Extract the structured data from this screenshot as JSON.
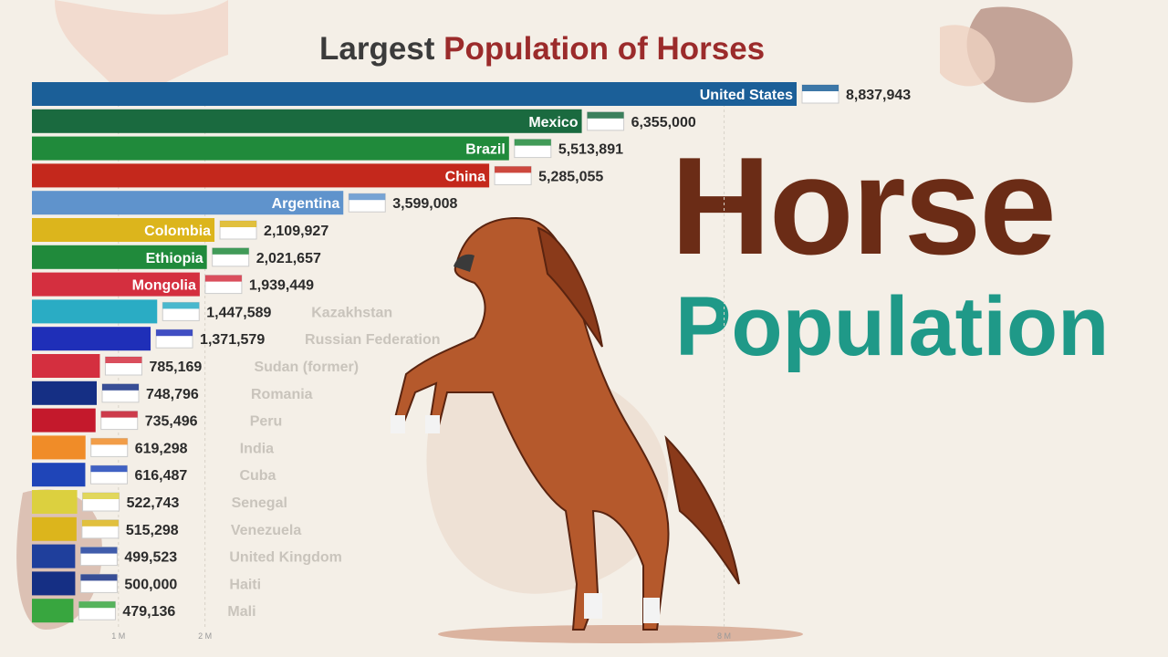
{
  "title": {
    "part1": "Largest",
    "part2": "Population of Horses"
  },
  "headline": {
    "line1": "Horse",
    "line2": "Population"
  },
  "colors": {
    "title_dark": "#3b3b3b",
    "title_accent": "#9b2b2b",
    "headline_brown": "#6b2c16",
    "headline_teal": "#1f9988",
    "background": "#f4efe7"
  },
  "chart_data": {
    "type": "bar",
    "orientation": "horizontal",
    "title": "Largest Population of Horses",
    "x_ticks": [
      "1 M",
      "2 M",
      "8 M"
    ],
    "categories": [
      "United States",
      "Mexico",
      "Brazil",
      "China",
      "Argentina",
      "Colombia",
      "Ethiopia",
      "Mongolia",
      "Kazakhstan",
      "Russian Federation",
      "Sudan (former)",
      "Romania",
      "Peru",
      "India",
      "Cuba",
      "Senegal",
      "Venezuela",
      "United Kingdom",
      "Haiti",
      "Mali"
    ],
    "values": [
      8837943,
      6355000,
      5513891,
      5285055,
      3599008,
      2109927,
      2021657,
      1939449,
      1447589,
      1371579,
      785169,
      748796,
      735496,
      619298,
      616487,
      522743,
      515298,
      499523,
      500000,
      479136
    ],
    "value_labels": [
      "8,837,943",
      "6,355,000",
      "5,513,891",
      "5,285,055",
      "3,599,008",
      "2,109,927",
      "2,021,657",
      "1,939,449",
      "1,447,589",
      "1,371,579",
      "785,169",
      "748,796",
      "735,496",
      "619,298",
      "616,487",
      "522,743",
      "515,298",
      "499,523",
      "500,000",
      "479,136"
    ],
    "bar_colors": [
      "#1b5f98",
      "#1a6a3f",
      "#208a3b",
      "#c4281c",
      "#5f93cc",
      "#dcb51c",
      "#208a3b",
      "#d42f3f",
      "#2aacc4",
      "#1f2fb8",
      "#d42f3f",
      "#152f84",
      "#c4192c",
      "#f08c28",
      "#1f45b8",
      "#dcd03f",
      "#dcb51c",
      "#1f3f9c",
      "#152f84",
      "#38a63f"
    ]
  }
}
